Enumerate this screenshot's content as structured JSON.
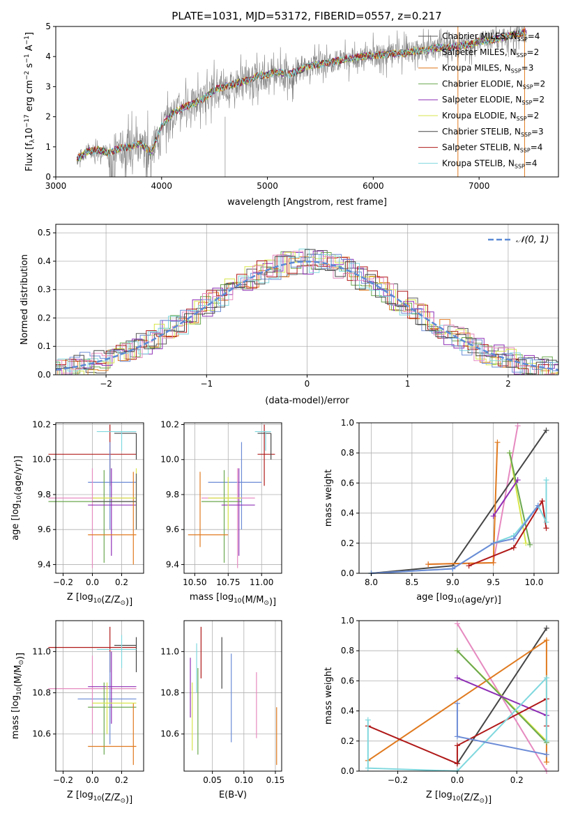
{
  "title": "PLATE=1031, MJD=53172, FIBERID=0557, z=0.217",
  "colors": {
    "Chabrier MILES": "#5a5a5a",
    "Salpeter MILES": "#b0b0b0",
    "Kroupa MILES": "#e07a1f",
    "Chabrier ELODIE": "#6aa84f",
    "Salpeter ELODIE": "#8e2fb5",
    "Kroupa ELODIE": "#d7e64a",
    "Chabrier STELIB": "#454545",
    "Salpeter STELIB": "#b01818",
    "Kroupa STELIB": "#7fd8de",
    "blue": "#6b8bd6",
    "pink": "#e68ac0",
    "data": "#808080"
  },
  "chart_data": [
    {
      "id": "spectrum",
      "type": "line",
      "xlabel": "wavelength [Angstrom, rest frame]",
      "ylabel": "Flux [f",
      "ylabel_sub": "λ",
      "ylabel_rest": "10",
      "ylabel_exp": "−17",
      "ylabel_unit": " erg cm",
      "ylabel_unit_exp": "−2",
      "ylabel_unit2": " s",
      "ylabel_unit2_exp": "−1",
      "ylabel_unit3": " A",
      "ylabel_unit3_exp": "−1",
      "ylabel_end": "]",
      "xlim": [
        3000,
        7750
      ],
      "ylim": [
        0,
        5
      ],
      "xticks": [
        "3000",
        "4000",
        "5000",
        "6000",
        "7000"
      ],
      "yticks": [
        "0",
        "1",
        "2",
        "3",
        "4",
        "5"
      ],
      "continuum_x": [
        3200,
        3300,
        3400,
        3500,
        3600,
        3700,
        3800,
        3900,
        4000,
        4100,
        4200,
        4300,
        4400,
        4500,
        4600,
        4700,
        4800,
        4900,
        5000,
        5100,
        5200,
        5300,
        5400,
        5500,
        5600,
        5700,
        5800,
        5900,
        6000,
        6100,
        6200,
        6300,
        6400,
        6500,
        6600,
        6700,
        6800,
        6900,
        7000,
        7100,
        7200,
        7300,
        7400
      ],
      "continuum_y": [
        0.6,
        0.85,
        0.9,
        0.8,
        0.95,
        1.0,
        1.1,
        0.8,
        1.7,
        2.1,
        2.3,
        2.45,
        2.6,
        2.9,
        3.0,
        3.1,
        3.2,
        3.35,
        3.4,
        3.5,
        3.4,
        3.55,
        3.7,
        3.75,
        3.8,
        3.9,
        3.95,
        4.0,
        4.05,
        4.05,
        4.1,
        4.1,
        4.2,
        4.2,
        4.3,
        4.3,
        4.35,
        4.4,
        4.5,
        4.55,
        4.6,
        4.7,
        4.8
      ],
      "legend": [
        {
          "label": "Chabrier MILES, N",
          "sub": "SSP",
          "val": "=4"
        },
        {
          "label": "Salpeter MILES, N",
          "sub": "SSP",
          "val": "=2"
        },
        {
          "label": "Kroupa MILES, N",
          "sub": "SSP",
          "val": "=3"
        },
        {
          "label": "Chabrier ELODIE, N",
          "sub": "SSP",
          "val": "=2"
        },
        {
          "label": "Salpeter ELODIE, N",
          "sub": "SSP",
          "val": "=2"
        },
        {
          "label": "Kroupa ELODIE, N",
          "sub": "SSP",
          "val": "=2"
        },
        {
          "label": "Chabrier STELIB, N",
          "sub": "SSP",
          "val": "=3"
        },
        {
          "label": "Salpeter STELIB, N",
          "sub": "SSP",
          "val": "=4"
        },
        {
          "label": "Kroupa STELIB, N",
          "sub": "SSP",
          "val": "=4"
        }
      ]
    },
    {
      "id": "residuals",
      "type": "line",
      "xlabel": "(data-model)/error",
      "ylabel": "Normed distribution",
      "xlim": [
        -2.5,
        2.5
      ],
      "ylim": [
        0,
        0.53
      ],
      "xticks": [
        "−2",
        "−1",
        "0",
        "1",
        "2"
      ],
      "yticks": [
        "0.0",
        "0.1",
        "0.2",
        "0.3",
        "0.4",
        "0.5"
      ],
      "legend": "𝒩(0, 1)",
      "grid": true
    },
    {
      "id": "age_vs_Z",
      "type": "scatter",
      "xlabel": "Z [log10(Z/Z⊙)]",
      "ylabel": "age  [log10(age/yr)]",
      "xticks": [
        "−0.2",
        "0.0",
        "0.2"
      ],
      "yticks": [
        "9.4",
        "9.6",
        "9.8",
        "10.0",
        "10.2"
      ],
      "xlim": [
        -0.25,
        0.35
      ],
      "ylim": [
        9.35,
        10.21
      ],
      "grid": true
    },
    {
      "id": "age_vs_mass",
      "type": "scatter",
      "xlabel": "mass [log10(M/M⊙)]",
      "xticks": [
        "10.50",
        "10.75",
        "11.00"
      ],
      "yticks": [
        "9.4",
        "9.6",
        "9.8",
        "10.0",
        "10.2"
      ],
      "xlim": [
        10.42,
        11.15
      ],
      "ylim": [
        9.35,
        10.21
      ],
      "grid": true
    },
    {
      "id": "weight_vs_age",
      "type": "line",
      "xlabel": "age  [log10(age/yr)]",
      "ylabel": "mass weight",
      "xticks": [
        "8.0",
        "8.5",
        "9.0",
        "9.5",
        "10.0"
      ],
      "yticks": [
        "0.0",
        "0.2",
        "0.4",
        "0.6",
        "0.8",
        "1.0"
      ],
      "xlim": [
        7.85,
        10.3
      ],
      "ylim": [
        0,
        1
      ],
      "grid": true
    },
    {
      "id": "mass_vs_Z",
      "type": "scatter",
      "xlabel": "Z [log10(Z/Z⊙)]",
      "ylabel": "mass [log10(M/M⊙)]",
      "xticks": [
        "−0.2",
        "0.0",
        "0.2"
      ],
      "yticks": [
        "10.6",
        "10.8",
        "11.0"
      ],
      "xlim": [
        -0.25,
        0.35
      ],
      "ylim": [
        10.42,
        11.15
      ],
      "grid": true
    },
    {
      "id": "mass_vs_ebv",
      "type": "scatter",
      "xlabel": "E(B-V)",
      "xticks": [
        "0.05",
        "0.10",
        "0.15"
      ],
      "yticks": [
        "10.6",
        "10.8",
        "11.0"
      ],
      "xlim": [
        0.005,
        0.16
      ],
      "ylim": [
        10.42,
        11.15
      ],
      "grid": true
    },
    {
      "id": "weight_vs_Z",
      "type": "line",
      "xlabel": "Z [log10(Z/Z⊙)]",
      "ylabel": "mass weight",
      "xticks": [
        "−0.2",
        "0.0",
        "0.2"
      ],
      "yticks": [
        "0.0",
        "0.2",
        "0.4",
        "0.6",
        "0.8",
        "1.0"
      ],
      "xlim": [
        -0.33,
        0.34
      ],
      "ylim": [
        0,
        1
      ],
      "grid": true
    }
  ]
}
